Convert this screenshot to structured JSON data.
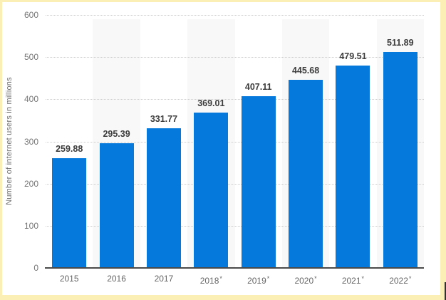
{
  "chart_data": {
    "type": "bar",
    "title": "",
    "categories": [
      "2015",
      "2016",
      "2017",
      "2018*",
      "2019*",
      "2020*",
      "2021*",
      "2022*"
    ],
    "values": [
      259.88,
      295.39,
      331.77,
      369.01,
      407.11,
      445.68,
      479.51,
      511.89
    ],
    "data_labels": [
      "259.88",
      "295.39",
      "331.77",
      "369.01",
      "407.11",
      "445.68",
      "479.51",
      "511.89"
    ],
    "xlabel": "",
    "ylabel": "Number of internet users in millions",
    "ylim": [
      0,
      600
    ],
    "ytick_step": 100,
    "ytick_labels": [
      "0",
      "100",
      "200",
      "300",
      "400",
      "500",
      "600"
    ],
    "grid": "horizontal-dotted",
    "legend": "none",
    "plot_bands": "alternating columns behind 2016, 2018*, 2020*, 2022*",
    "colors": {
      "bar": "#0679dd",
      "plot_band": "#f8f8f8",
      "gridline": "#cccccc",
      "axis_line": "#4a4a4a",
      "tick_label": "#757575",
      "category_label": "#666666",
      "data_label": "#3d3d3d",
      "frame": "#fcefb6"
    }
  }
}
